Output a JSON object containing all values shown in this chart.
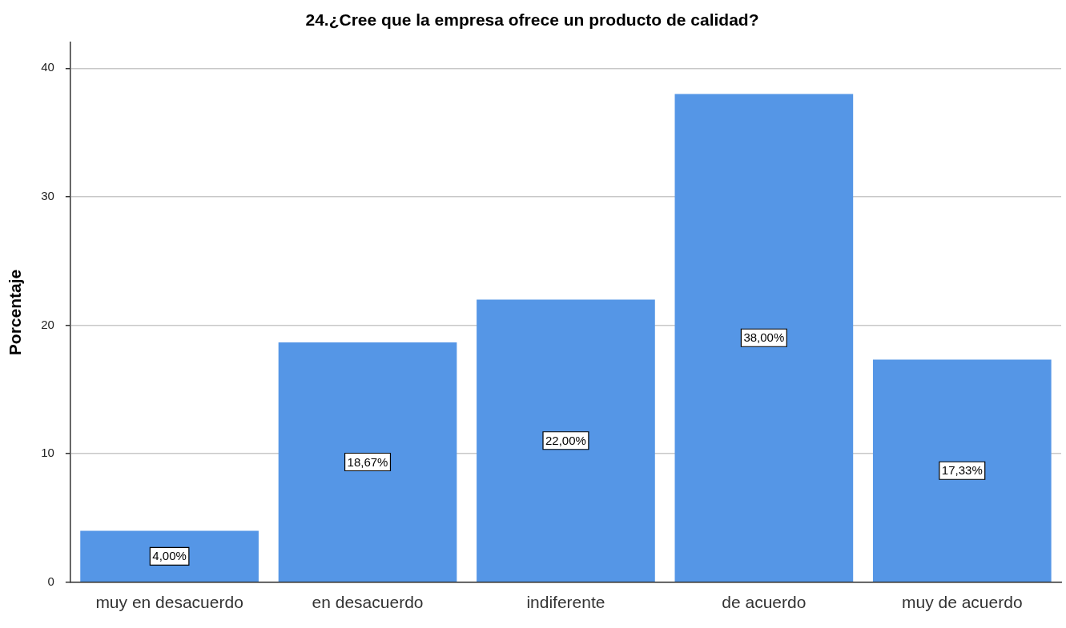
{
  "chart_data": {
    "type": "bar",
    "title": "24.¿Cree que la empresa ofrece un producto de calidad?",
    "ylabel": "Porcentaje",
    "categories": [
      "muy en desacuerdo",
      "en desacuerdo",
      "indiferente",
      "de acuerdo",
      "muy de acuerdo"
    ],
    "values": [
      4.0,
      18.67,
      22.0,
      38.0,
      17.33
    ],
    "value_labels": [
      "4,00%",
      "18,67%",
      "22,00%",
      "38,00%",
      "17,33%"
    ],
    "color": "#5596e6",
    "ylim": [
      0,
      42
    ],
    "yticks": [
      0,
      10,
      20,
      30,
      40
    ],
    "grid": "y",
    "legend": false
  }
}
